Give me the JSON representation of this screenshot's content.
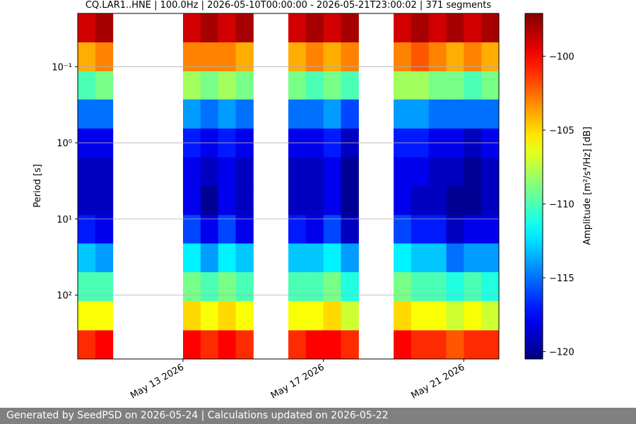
{
  "chart_data": {
    "type": "heatmap",
    "title": "CQ.LAR1..HNE | 100.0Hz | 2026-05-10T00:00:00 - 2026-05-21T23:00:02 | 371 segments",
    "ylabel": "Period [s]",
    "colorbar_label": "Amplitude [m²/s⁴/Hz] [dB]",
    "colormap": "jet",
    "x": [
      "2026-05-10T00:00",
      "2026-05-10T12:00",
      "2026-05-11T00:00",
      "2026-05-11T12:00",
      "2026-05-12T00:00",
      "2026-05-12T12:00",
      "2026-05-13T00:00",
      "2026-05-13T12:00",
      "2026-05-14T00:00",
      "2026-05-14T12:00",
      "2026-05-15T00:00",
      "2026-05-15T12:00",
      "2026-05-16T00:00",
      "2026-05-16T12:00",
      "2026-05-17T00:00",
      "2026-05-17T12:00",
      "2026-05-18T00:00",
      "2026-05-18T12:00",
      "2026-05-19T00:00",
      "2026-05-19T12:00",
      "2026-05-20T00:00",
      "2026-05-20T12:00",
      "2026-05-21T00:00",
      "2026-05-21T12:00"
    ],
    "xlim": [
      "2026-05-10T00:00",
      "2026-05-22T00:00"
    ],
    "xticks": [
      {
        "value": "2026-05-13T00:00",
        "label": "May 13 2026"
      },
      {
        "value": "2026-05-17T00:00",
        "label": "May 17 2026"
      },
      {
        "value": "2026-05-21T00:00",
        "label": "May 21 2026"
      }
    ],
    "y_edges": [
      0.02,
      0.048,
      0.115,
      0.27,
      0.65,
      1.55,
      3.7,
      8.9,
      21,
      50,
      120,
      290,
      690
    ],
    "ylim": [
      0.02,
      690
    ],
    "log_y": true,
    "invert_y": true,
    "yticks": [
      {
        "value": 0.1,
        "label": "10⁻¹"
      },
      {
        "value": 1,
        "label": "10⁰"
      },
      {
        "value": 10,
        "label": "10¹"
      },
      {
        "value": 100,
        "label": "10²"
      }
    ],
    "grid": true,
    "z": [
      [
        -99,
        -98,
        null,
        null,
        null,
        null,
        -99,
        -98,
        -99,
        -98,
        null,
        null,
        -99,
        -98,
        -99,
        -98,
        null,
        null,
        -99,
        -98,
        -99,
        -98,
        -99,
        -98
      ],
      [
        -104,
        -103,
        null,
        null,
        null,
        null,
        -103,
        -103,
        -103,
        -104,
        null,
        null,
        -104,
        -103,
        -104,
        -103,
        null,
        null,
        -103,
        -102,
        -103,
        -104,
        -103,
        -104
      ],
      [
        -110,
        -109,
        null,
        null,
        null,
        null,
        -108,
        -109,
        -108,
        -109,
        null,
        null,
        -109,
        -110,
        -109,
        -110,
        null,
        null,
        -108,
        -108,
        -109,
        -109,
        -110,
        -109
      ],
      [
        -115,
        -115,
        null,
        null,
        null,
        null,
        -114,
        -115,
        -114,
        -115,
        null,
        null,
        -115,
        -115,
        -114,
        -116,
        null,
        null,
        -114,
        -114,
        -115,
        -115,
        -115,
        -115
      ],
      [
        -118,
        -118,
        null,
        null,
        null,
        null,
        -117,
        -118,
        -117,
        -118,
        null,
        null,
        -118,
        -118,
        -117,
        -119,
        null,
        null,
        -117,
        -117,
        -118,
        -118,
        -119,
        -118
      ],
      [
        -119,
        -119,
        null,
        null,
        null,
        null,
        -118,
        -119,
        -118,
        -119,
        null,
        null,
        -119,
        -119,
        -118,
        -120,
        null,
        null,
        -118,
        -118,
        -119,
        -119,
        -120,
        -119
      ],
      [
        -119,
        -119,
        null,
        null,
        null,
        null,
        -118,
        -120,
        -118,
        -119,
        null,
        null,
        -119,
        -119,
        -118,
        -120,
        null,
        null,
        -118,
        -119,
        -119,
        -120,
        -120,
        -119
      ],
      [
        -117,
        -118,
        null,
        null,
        null,
        null,
        -116,
        -118,
        -116,
        -118,
        null,
        null,
        -117,
        -118,
        -116,
        -119,
        null,
        null,
        -116,
        -117,
        -117,
        -119,
        -118,
        -118
      ],
      [
        -113,
        -114,
        null,
        null,
        null,
        null,
        -112,
        -114,
        -112,
        -113,
        null,
        null,
        -113,
        -113,
        -112,
        -114,
        null,
        null,
        -112,
        -113,
        -113,
        -115,
        -114,
        -114
      ],
      [
        -110,
        -110,
        null,
        null,
        null,
        null,
        -109,
        -110,
        -109,
        -110,
        null,
        null,
        -110,
        -110,
        -109,
        -111,
        null,
        null,
        -109,
        -110,
        -110,
        -111,
        -110,
        -111
      ],
      [
        -106,
        -106,
        null,
        null,
        null,
        null,
        -105,
        -106,
        -105,
        -106,
        null,
        null,
        -106,
        -106,
        -105,
        -107,
        null,
        null,
        -105,
        -106,
        -106,
        -107,
        -106,
        -107
      ],
      [
        -101,
        -100,
        null,
        null,
        null,
        null,
        -100,
        -101,
        -100,
        -101,
        null,
        null,
        -101,
        -100,
        -100,
        -101,
        null,
        null,
        -100,
        -101,
        -101,
        -102,
        -101,
        -101
      ]
    ],
    "zlim": [
      -120.5,
      -97.1
    ],
    "zticks": [
      {
        "value": -100,
        "label": "−100"
      },
      {
        "value": -105,
        "label": "−105"
      },
      {
        "value": -110,
        "label": "−110"
      },
      {
        "value": -115,
        "label": "−115"
      },
      {
        "value": -120,
        "label": "−120"
      }
    ]
  },
  "footer": {
    "text": "Generated by SeedPSD on 2026-05-24 | Calculations updated on 2026-05-22"
  }
}
